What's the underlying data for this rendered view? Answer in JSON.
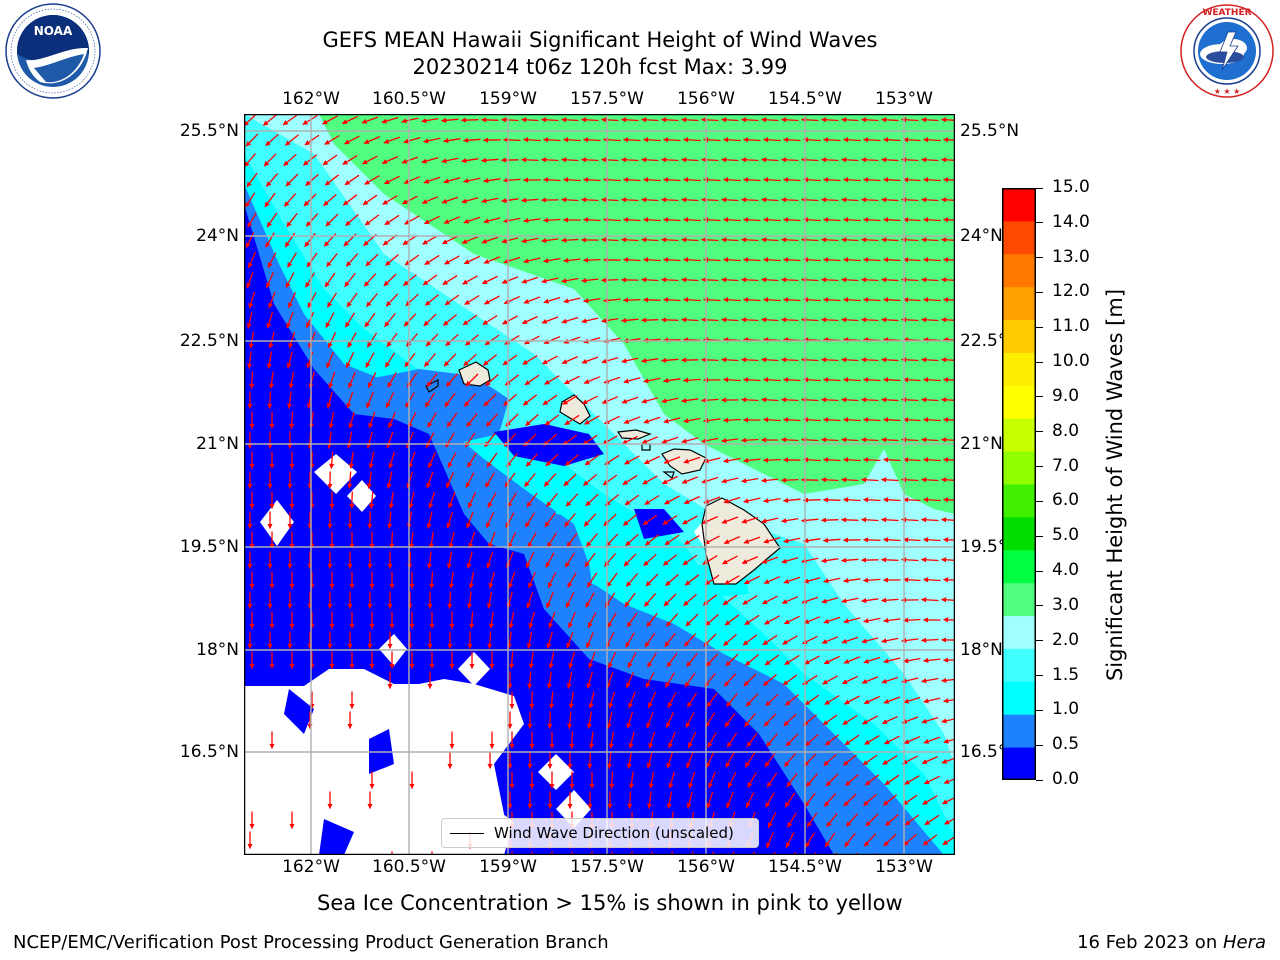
{
  "header": {
    "title_line1": "GEFS MEAN Hawaii Significant Height of Wind Waves",
    "title_line2": "20230214 t06z 120h fcst   Max: 3.99"
  },
  "logos": {
    "noaa": {
      "text": "NOAA",
      "ring_text": "NATIONAL OCEANIC AND ATMOSPHERIC ADMINISTRATION · U.S. DEPARTMENT OF COMMERCE"
    },
    "nws": {
      "ring_text": "NATIONAL WEATHER SERVICE"
    }
  },
  "map": {
    "lon_labels": [
      "162°W",
      "160.5°W",
      "159°W",
      "157.5°W",
      "156°W",
      "154.5°W",
      "153°W"
    ],
    "lat_labels_left": [
      "25.5°N",
      "24°N",
      "22.5°N",
      "21°N",
      "19.5°N",
      "18°N",
      "16.5°N"
    ],
    "lat_labels_right": [
      "25.5°N",
      "24°N",
      "22.5°N",
      "21°N",
      "19.5°N",
      "18°N",
      "16.5°N"
    ],
    "legend_label": "Wind Wave Direction (unscaled)",
    "arrow_color": "#ff0000",
    "land_color": "#efebdc"
  },
  "colorbar": {
    "label": "Significant Height of Wind Waves [m]",
    "ticks": [
      "15.0",
      "14.0",
      "13.0",
      "12.0",
      "11.0",
      "10.0",
      "9.0",
      "8.0",
      "7.0",
      "6.0",
      "5.0",
      "4.0",
      "3.0",
      "2.0",
      "1.5",
      "1.0",
      "0.5",
      "0.0"
    ],
    "colors": [
      "#0000ff",
      "#1e82ff",
      "#00ffff",
      "#40ffff",
      "#a0ffff",
      "#50ff80",
      "#00ff40",
      "#00dd00",
      "#40ee00",
      "#90ff00",
      "#c8ff00",
      "#ffff00",
      "#ffee00",
      "#ffcc00",
      "#ffa000",
      "#ff7800",
      "#ff4800",
      "#ff0000"
    ]
  },
  "notes": {
    "sea_ice": "Sea Ice Concentration > 15% is shown in pink to yellow"
  },
  "footer": {
    "left": "NCEP/EMC/Verification Post Processing Product Generation Branch",
    "right_date": "16 Feb 2023 on ",
    "right_host": "Hera"
  }
}
